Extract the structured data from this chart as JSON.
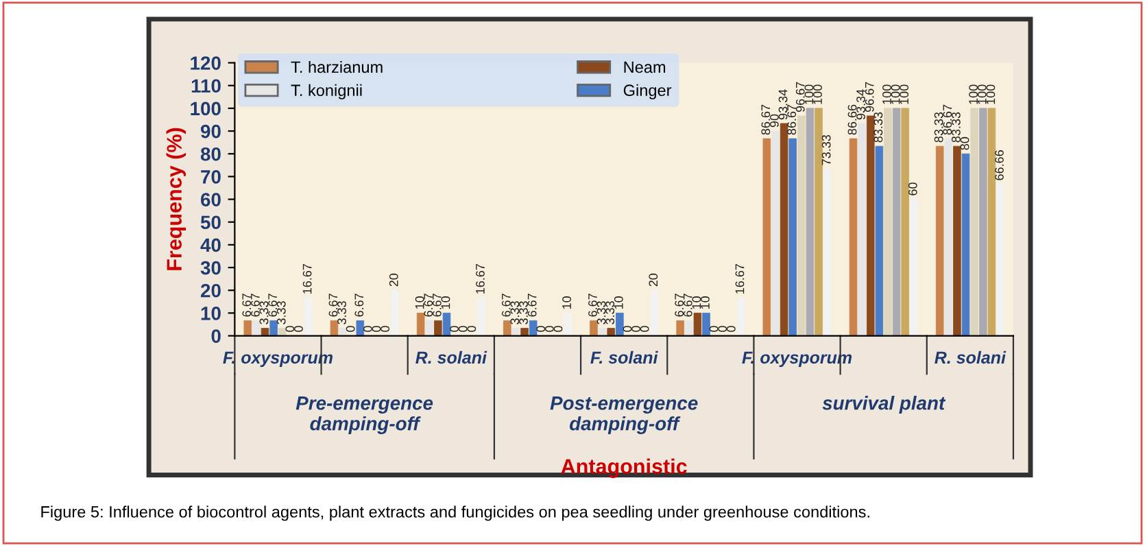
{
  "chart_data": {
    "type": "bar",
    "xlabel": "Antagonistic",
    "ylabel": "Frequency (%)",
    "categories": [
      "F. oxysporum",
      null,
      "R. solani",
      null,
      "F. solani",
      null,
      "F. oxysporum",
      null,
      "R. solani"
    ],
    "series": [
      {
        "name": "T. harzianum",
        "color": "#c8824a",
        "values": [
          6.67,
          6.67,
          10,
          6.67,
          6.67,
          6.67,
          86.67,
          86.66,
          83.33
        ]
      },
      {
        "name": "T. konignii",
        "color": "#e6e6e6",
        "values": [
          6.67,
          3.33,
          6.67,
          3.33,
          3.33,
          6.67,
          90,
          93.34,
          86.67
        ]
      },
      {
        "name": "Neam",
        "color": "#8b4a1e",
        "values": [
          3.33,
          0,
          6.67,
          3.33,
          3.33,
          10,
          93.34,
          96.67,
          83.33
        ]
      },
      {
        "name": "Ginger",
        "color": "#4a7cc8",
        "values": [
          6.67,
          6.67,
          10,
          6.67,
          10,
          10,
          86.67,
          83.33,
          80
        ]
      },
      {
        "color": "#ddd5bc",
        "values": [
          3.33,
          0,
          0,
          0,
          0,
          0,
          96.67,
          100,
          100
        ]
      },
      {
        "color": "#a9a9b2",
        "values": [
          0,
          0,
          0,
          0,
          0,
          0,
          100,
          100,
          100
        ]
      },
      {
        "color": "#c9a860",
        "values": [
          0,
          0,
          0,
          0,
          0,
          0,
          100,
          100,
          100
        ]
      },
      {
        "color": "#f2f2f2",
        "values": [
          16.67,
          20,
          16.67,
          10,
          20,
          16.67,
          73.33,
          60,
          66.66
        ]
      }
    ],
    "ylim": [
      0,
      120
    ],
    "yticks": [
      0,
      10,
      20,
      30,
      40,
      50,
      60,
      70,
      80,
      90,
      100,
      110,
      120
    ],
    "data_labels": true,
    "legend": "top left",
    "grid": false,
    "annotations": [
      "Pre-emergence\ndamping-off",
      "Post-emergence\ndamping-off",
      "survival plant",
      "Figure 5: Influence of biocontrol agents, plant extracts and fungicides on pea seedling under greenhouse conditions."
    ]
  }
}
